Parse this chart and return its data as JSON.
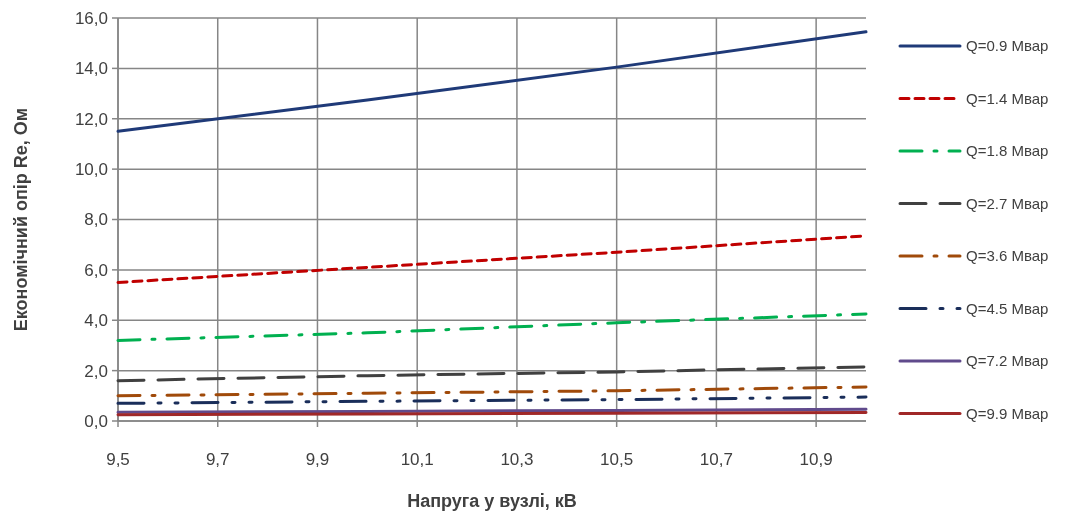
{
  "chart_data": {
    "type": "line",
    "xlabel": "Напруга у вузлі, кВ",
    "ylabel": "Економічний опір Re, Ом",
    "x": [
      9.5,
      10.0,
      10.5,
      11.0
    ],
    "xlim": [
      9.5,
      11.0
    ],
    "xticks": [
      {
        "value": 9.5,
        "label": "9,5"
      },
      {
        "value": 9.7,
        "label": "9,7"
      },
      {
        "value": 9.9,
        "label": "9,9"
      },
      {
        "value": 10.1,
        "label": "10,1"
      },
      {
        "value": 10.3,
        "label": "10,3"
      },
      {
        "value": 10.5,
        "label": "10,5"
      },
      {
        "value": 10.7,
        "label": "10,7"
      },
      {
        "value": 10.9,
        "label": "10,9"
      }
    ],
    "ylim": [
      0,
      16
    ],
    "yticks": [
      {
        "value": 0,
        "label": "0,0"
      },
      {
        "value": 2,
        "label": "2,0"
      },
      {
        "value": 4,
        "label": "4,0"
      },
      {
        "value": 6,
        "label": "6,0"
      },
      {
        "value": 8,
        "label": "8,0"
      },
      {
        "value": 10,
        "label": "10,0"
      },
      {
        "value": 12,
        "label": "12,0"
      },
      {
        "value": 14,
        "label": "14,0"
      },
      {
        "value": 16,
        "label": "16,0"
      }
    ],
    "grid": true,
    "legend": "right",
    "series": [
      {
        "name": "Q=0.9 Мвар",
        "color": "#1f3a78",
        "line_style": "solid",
        "values": [
          11.5,
          12.74,
          14.05,
          15.45
        ]
      },
      {
        "name": "Q=1.4 Мвар",
        "color": "#c00000",
        "line_style": "dashed",
        "values": [
          5.5,
          6.1,
          6.7,
          7.35
        ]
      },
      {
        "name": "Q=1.8 Мвар",
        "color": "#00b050",
        "line_style": "dashdot",
        "values": [
          3.2,
          3.5,
          3.9,
          4.25
        ]
      },
      {
        "name": "Q=2.7 Мвар",
        "color": "#404040",
        "line_style": "longdash",
        "values": [
          1.6,
          1.8,
          1.95,
          2.15
        ]
      },
      {
        "name": "Q=3.6 Мвар",
        "color": "#a04a0a",
        "line_style": "dashdot",
        "values": [
          1.0,
          1.1,
          1.2,
          1.35
        ]
      },
      {
        "name": "Q=4.5 Мвар",
        "color": "#1a2e5a",
        "line_style": "dashdotdot",
        "values": [
          0.7,
          0.78,
          0.85,
          0.95
        ]
      },
      {
        "name": "Q=7.2 Мвар",
        "color": "#604a8c",
        "line_style": "solid",
        "values": [
          0.35,
          0.38,
          0.42,
          0.47
        ]
      },
      {
        "name": "Q=9.9 Мвар",
        "color": "#a02828",
        "line_style": "solid",
        "values": [
          0.25,
          0.28,
          0.31,
          0.34
        ]
      }
    ]
  }
}
